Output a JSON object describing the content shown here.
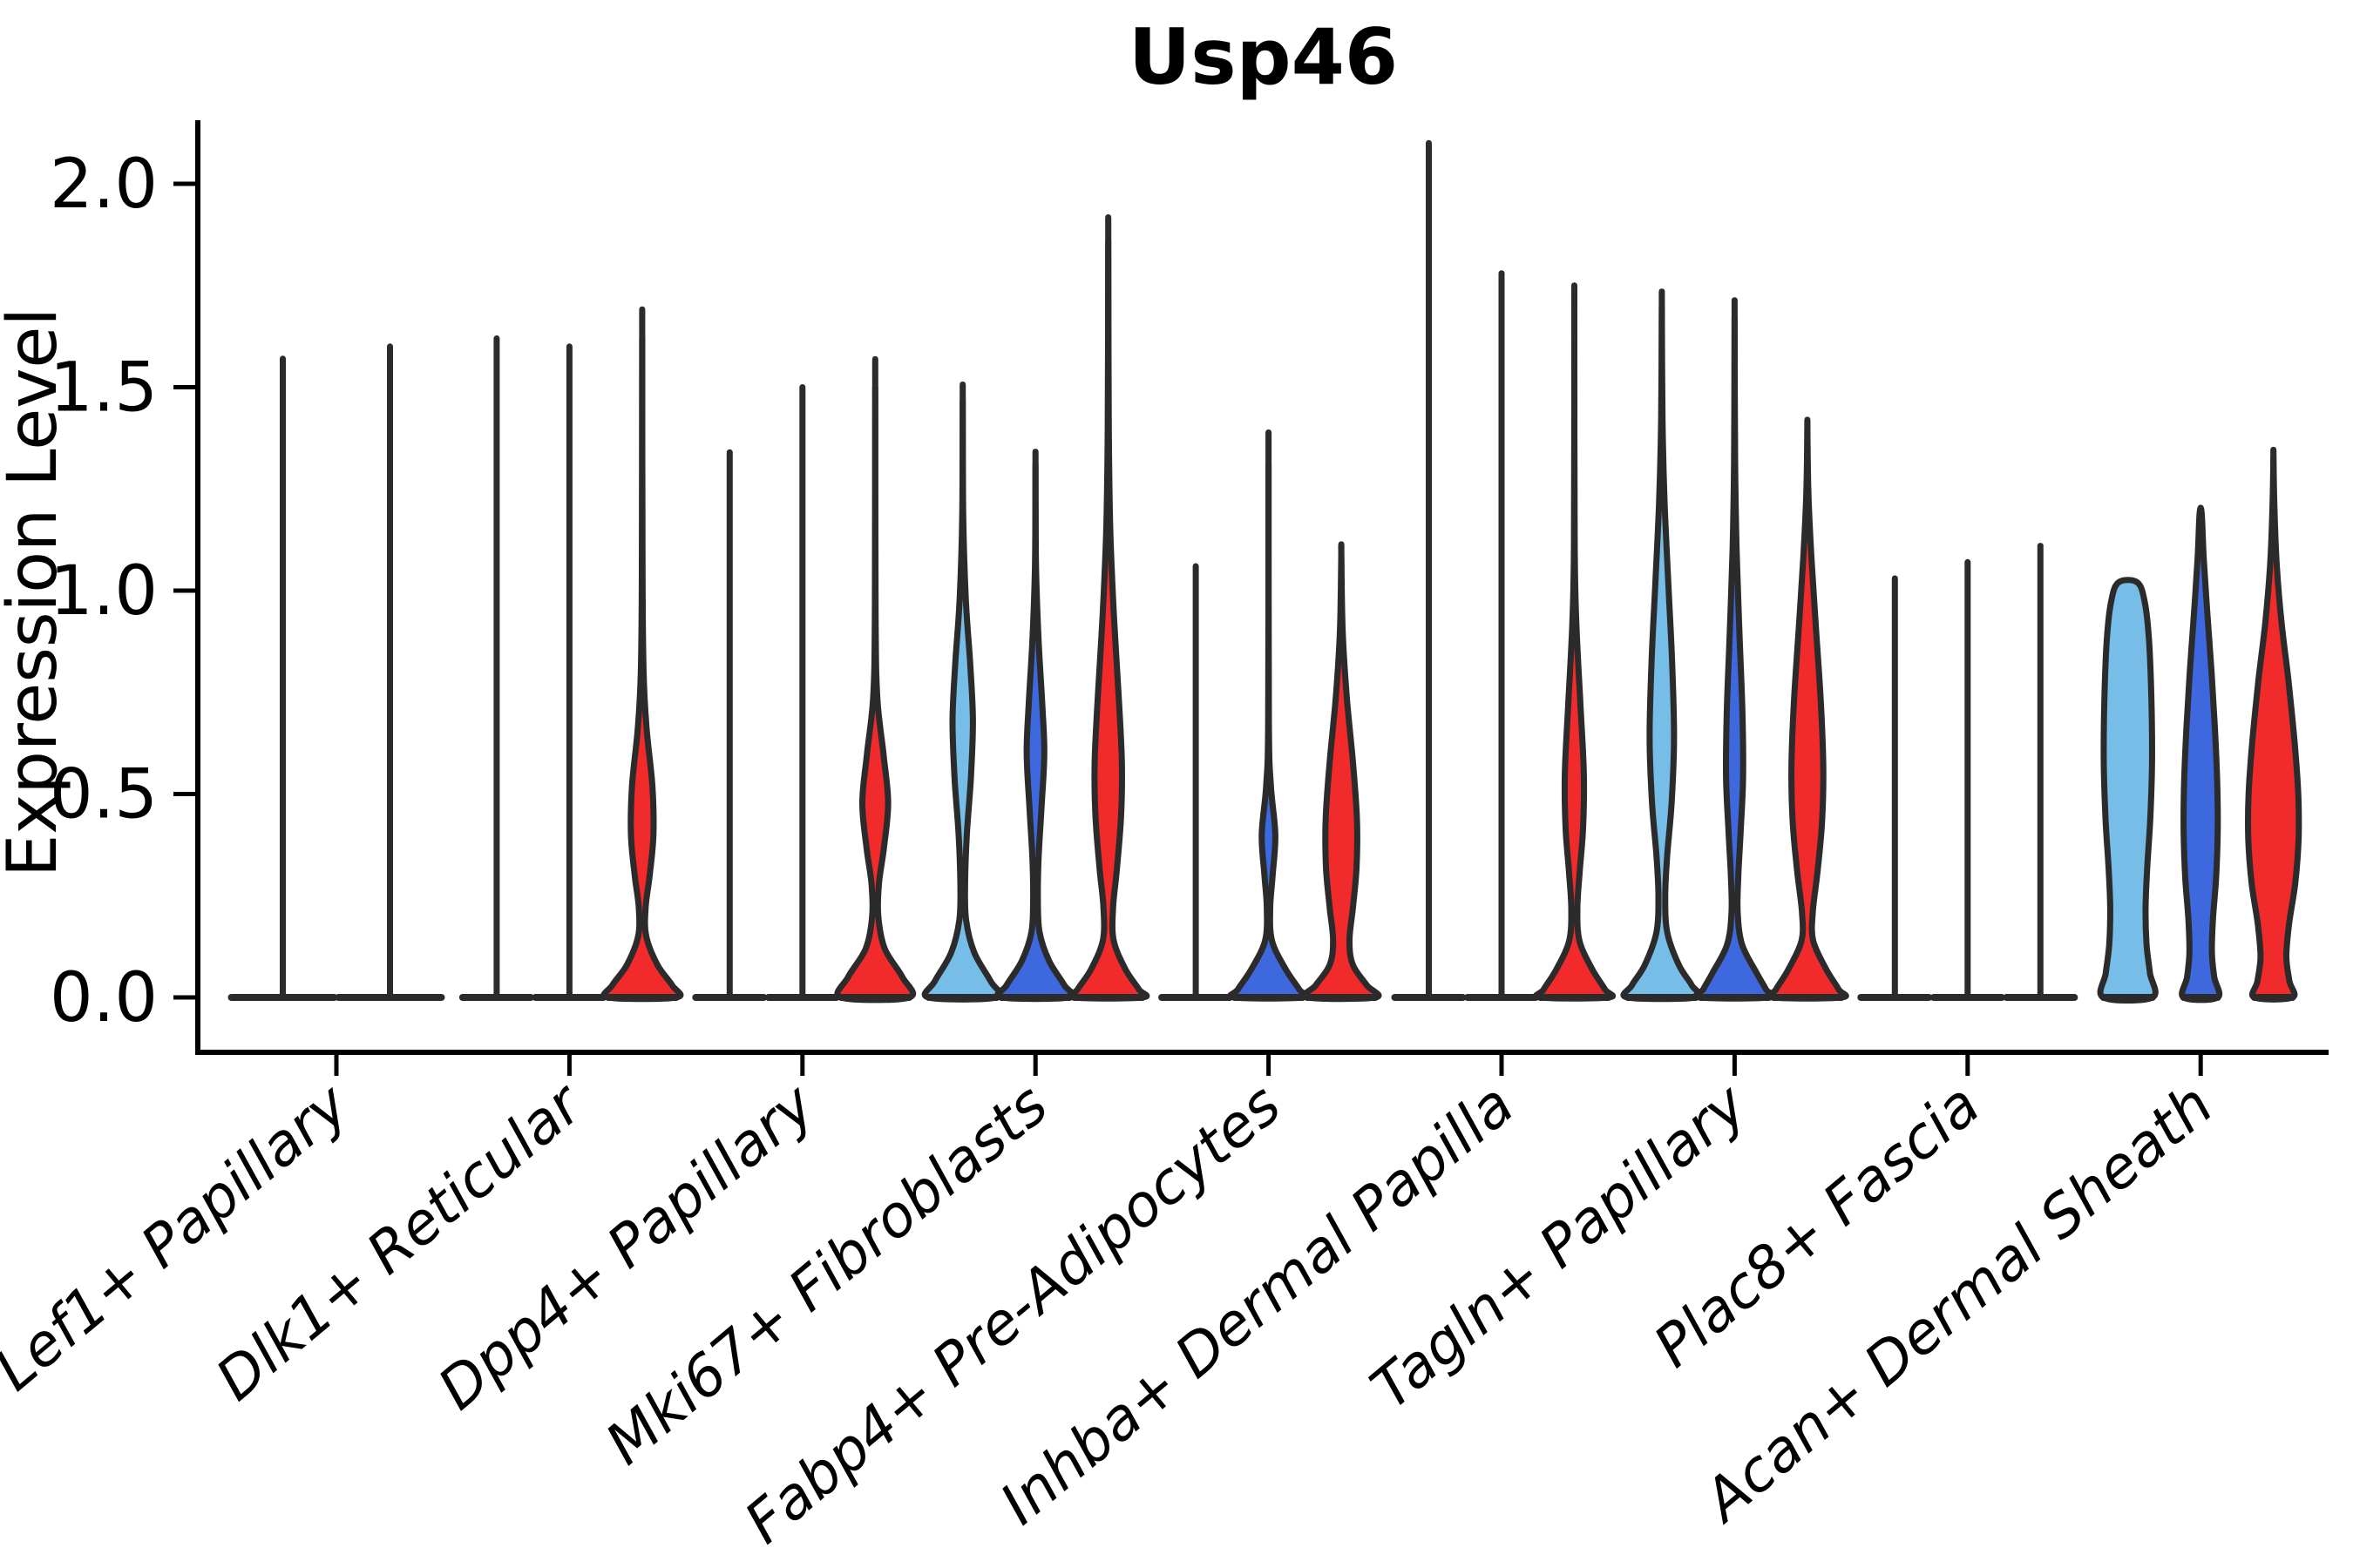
{
  "chart_data": {
    "type": "violin",
    "title": "Usp46",
    "ylabel": "Expression Level",
    "xlabel": "",
    "grid": false,
    "legend": "none",
    "ylim": [
      -0.13,
      2.15
    ],
    "yticks": [
      0.0,
      0.5,
      1.0,
      1.5,
      2.0
    ],
    "ytick_labels": [
      "0.0",
      "0.5",
      "1.0",
      "1.5",
      "2.0"
    ],
    "categories": [
      "Lef1+ Papillary",
      "Dlk1+ Reticular",
      "Dpp4+ Papillary",
      "Mki67+ Fibroblasts",
      "Fabp4+ Pre-Adipocytes",
      "Inhba+ Dermal Papilla",
      "Tagln+ Papillary",
      "Plac8+ Fascia",
      "Acan+ Dermal Sheath"
    ],
    "palette": {
      "skyblue": "#76BDE8",
      "blue": "#3E68DE",
      "red": "#F12A2B",
      "unknown": "#ffffff"
    },
    "outline_color": "#2B2B2B",
    "axis_color": "#000000",
    "groups": [
      {
        "category": "Lef1+ Papillary",
        "violins": [
          {
            "color": "unknown",
            "max": 1.57,
            "flat": true,
            "profile": null
          },
          {
            "color": "unknown",
            "max": 1.6,
            "flat": true,
            "profile": null
          }
        ]
      },
      {
        "category": "Dlk1+ Reticular",
        "violins": [
          {
            "color": "skyblue",
            "max": 1.62,
            "flat": true,
            "profile": null
          },
          {
            "color": "blue",
            "max": 1.6,
            "flat": true,
            "profile": null
          },
          {
            "color": "red",
            "max": 1.62,
            "flat": false,
            "profile": [
              [
                1.62,
                0
              ],
              [
                1.05,
                0.01
              ],
              [
                0.8,
                0.04
              ],
              [
                0.66,
                0.13
              ],
              [
                0.52,
                0.3
              ],
              [
                0.4,
                0.33
              ],
              [
                0.3,
                0.22
              ],
              [
                0.22,
                0.1
              ],
              [
                0.15,
                0.12
              ],
              [
                0.08,
                0.45
              ],
              [
                0.03,
                0.88
              ],
              [
                0,
                1
              ]
            ]
          }
        ]
      },
      {
        "category": "Dpp4+ Papillary",
        "violins": [
          {
            "color": "skyblue",
            "max": 1.34,
            "flat": true,
            "profile": null
          },
          {
            "color": "blue",
            "max": 1.5,
            "flat": true,
            "profile": null
          },
          {
            "color": "red",
            "max": 1.5,
            "flat": false,
            "profile": [
              [
                1.5,
                0
              ],
              [
                0.95,
                0.01
              ],
              [
                0.74,
                0.06
              ],
              [
                0.6,
                0.24
              ],
              [
                0.48,
                0.38
              ],
              [
                0.37,
                0.26
              ],
              [
                0.28,
                0.11
              ],
              [
                0.2,
                0.09
              ],
              [
                0.12,
                0.28
              ],
              [
                0.05,
                0.8
              ],
              [
                0,
                1
              ]
            ]
          }
        ]
      },
      {
        "category": "Mki67+ Fibroblasts",
        "violins": [
          {
            "color": "skyblue",
            "max": 1.47,
            "flat": false,
            "profile": [
              [
                1.47,
                0
              ],
              [
                1.18,
                0.015
              ],
              [
                0.98,
                0.09
              ],
              [
                0.82,
                0.22
              ],
              [
                0.68,
                0.3
              ],
              [
                0.54,
                0.24
              ],
              [
                0.4,
                0.12
              ],
              [
                0.28,
                0.07
              ],
              [
                0.19,
                0.1
              ],
              [
                0.11,
                0.34
              ],
              [
                0.04,
                0.82
              ],
              [
                0,
                1
              ]
            ]
          },
          {
            "color": "blue",
            "max": 1.31,
            "flat": false,
            "profile": [
              [
                1.31,
                0
              ],
              [
                1.06,
                0.015
              ],
              [
                0.88,
                0.09
              ],
              [
                0.72,
                0.2
              ],
              [
                0.6,
                0.26
              ],
              [
                0.47,
                0.18
              ],
              [
                0.34,
                0.09
              ],
              [
                0.24,
                0.07
              ],
              [
                0.16,
                0.12
              ],
              [
                0.09,
                0.4
              ],
              [
                0.03,
                0.85
              ],
              [
                0,
                1
              ]
            ]
          },
          {
            "color": "red",
            "max": 1.86,
            "flat": false,
            "profile": [
              [
                1.86,
                0
              ],
              [
                1.4,
                0.015
              ],
              [
                1.15,
                0.06
              ],
              [
                0.95,
                0.16
              ],
              [
                0.75,
                0.3
              ],
              [
                0.58,
                0.4
              ],
              [
                0.45,
                0.38
              ],
              [
                0.32,
                0.26
              ],
              [
                0.22,
                0.14
              ],
              [
                0.14,
                0.16
              ],
              [
                0.07,
                0.5
              ],
              [
                0.02,
                0.9
              ],
              [
                0,
                1
              ]
            ]
          }
        ]
      },
      {
        "category": "Fabp4+ Pre-Adipocytes",
        "violins": [
          {
            "color": "skyblue",
            "max": 1.06,
            "flat": true,
            "profile": null
          },
          {
            "color": "blue",
            "max": 1.31,
            "flat": false,
            "profile": [
              [
                1.31,
                0
              ],
              [
                0.68,
                0.01
              ],
              [
                0.52,
                0.07
              ],
              [
                0.4,
                0.2
              ],
              [
                0.3,
                0.12
              ],
              [
                0.22,
                0.05
              ],
              [
                0.14,
                0.1
              ],
              [
                0.07,
                0.5
              ],
              [
                0.02,
                0.9
              ],
              [
                0,
                1
              ]
            ]
          },
          {
            "color": "red",
            "max": 1.09,
            "flat": false,
            "profile": [
              [
                1.09,
                0
              ],
              [
                0.9,
                0.04
              ],
              [
                0.74,
                0.16
              ],
              [
                0.58,
                0.34
              ],
              [
                0.44,
                0.46
              ],
              [
                0.32,
                0.45
              ],
              [
                0.22,
                0.34
              ],
              [
                0.14,
                0.24
              ],
              [
                0.08,
                0.34
              ],
              [
                0.03,
                0.75
              ],
              [
                0,
                1
              ]
            ]
          }
        ]
      },
      {
        "category": "Inhba+ Dermal Papilla",
        "violins": [
          {
            "color": "skyblue",
            "max": 2.1,
            "flat": true,
            "profile": null
          },
          {
            "color": "blue",
            "max": 1.78,
            "flat": true,
            "profile": null
          },
          {
            "color": "red",
            "max": 1.68,
            "flat": false,
            "profile": [
              [
                1.68,
                0
              ],
              [
                1.12,
                0.01
              ],
              [
                0.92,
                0.06
              ],
              [
                0.72,
                0.18
              ],
              [
                0.55,
                0.28
              ],
              [
                0.42,
                0.26
              ],
              [
                0.31,
                0.16
              ],
              [
                0.22,
                0.09
              ],
              [
                0.14,
                0.15
              ],
              [
                0.07,
                0.52
              ],
              [
                0.02,
                0.9
              ],
              [
                0,
                1
              ]
            ]
          }
        ]
      },
      {
        "category": "Tagln+ Papillary",
        "violins": [
          {
            "color": "skyblue",
            "max": 1.7,
            "flat": false,
            "profile": [
              [
                1.7,
                0
              ],
              [
                1.42,
                0.02
              ],
              [
                1.22,
                0.08
              ],
              [
                1.02,
                0.19
              ],
              [
                0.83,
                0.3
              ],
              [
                0.64,
                0.36
              ],
              [
                0.48,
                0.29
              ],
              [
                0.35,
                0.16
              ],
              [
                0.25,
                0.1
              ],
              [
                0.16,
                0.16
              ],
              [
                0.08,
                0.5
              ],
              [
                0.03,
                0.88
              ],
              [
                0,
                1
              ]
            ]
          },
          {
            "color": "blue",
            "max": 1.67,
            "flat": false,
            "profile": [
              [
                1.67,
                0
              ],
              [
                1.32,
                0.015
              ],
              [
                1.1,
                0.06
              ],
              [
                0.9,
                0.14
              ],
              [
                0.7,
                0.23
              ],
              [
                0.54,
                0.25
              ],
              [
                0.41,
                0.18
              ],
              [
                0.3,
                0.11
              ],
              [
                0.21,
                0.09
              ],
              [
                0.13,
                0.22
              ],
              [
                0.06,
                0.65
              ],
              [
                0.02,
                0.92
              ],
              [
                0,
                1
              ]
            ]
          },
          {
            "color": "red",
            "max": 1.4,
            "flat": false,
            "profile": [
              [
                1.4,
                0
              ],
              [
                1.24,
                0.03
              ],
              [
                1.08,
                0.12
              ],
              [
                0.9,
                0.26
              ],
              [
                0.72,
                0.4
              ],
              [
                0.56,
                0.47
              ],
              [
                0.43,
                0.43
              ],
              [
                0.31,
                0.3
              ],
              [
                0.21,
                0.16
              ],
              [
                0.14,
                0.17
              ],
              [
                0.07,
                0.55
              ],
              [
                0.02,
                0.92
              ],
              [
                0,
                1
              ]
            ]
          }
        ]
      },
      {
        "category": "Plac8+ Fascia",
        "violins": [
          {
            "color": "skyblue",
            "max": 1.03,
            "flat": true,
            "profile": null
          },
          {
            "color": "blue",
            "max": 1.07,
            "flat": true,
            "profile": null
          },
          {
            "color": "red",
            "max": 1.11,
            "flat": true,
            "profile": null
          }
        ]
      },
      {
        "category": "Acan+ Dermal Sheath",
        "violins": [
          {
            "color": "skyblue",
            "max": 1.02,
            "flat": false,
            "profile": [
              [
                1.02,
                0.28
              ],
              [
                0.97,
                0.5
              ],
              [
                0.88,
                0.62
              ],
              [
                0.74,
                0.69
              ],
              [
                0.58,
                0.71
              ],
              [
                0.44,
                0.66
              ],
              [
                0.32,
                0.57
              ],
              [
                0.22,
                0.52
              ],
              [
                0.13,
                0.55
              ],
              [
                0.06,
                0.65
              ],
              [
                0,
                0.72
              ]
            ]
          },
          {
            "color": "blue",
            "max": 1.19,
            "flat": false,
            "profile": [
              [
                1.19,
                0.03
              ],
              [
                1.08,
                0.09
              ],
              [
                0.94,
                0.2
              ],
              [
                0.8,
                0.32
              ],
              [
                0.66,
                0.42
              ],
              [
                0.52,
                0.49
              ],
              [
                0.4,
                0.5
              ],
              [
                0.29,
                0.45
              ],
              [
                0.19,
                0.36
              ],
              [
                0.11,
                0.33
              ],
              [
                0.05,
                0.4
              ],
              [
                0,
                0.5
              ]
            ]
          },
          {
            "color": "red",
            "max": 1.33,
            "flat": false,
            "profile": [
              [
                1.33,
                0
              ],
              [
                1.2,
                0.03
              ],
              [
                1.06,
                0.1
              ],
              [
                0.92,
                0.24
              ],
              [
                0.78,
                0.44
              ],
              [
                0.63,
                0.62
              ],
              [
                0.5,
                0.73
              ],
              [
                0.39,
                0.74
              ],
              [
                0.28,
                0.64
              ],
              [
                0.18,
                0.46
              ],
              [
                0.1,
                0.38
              ],
              [
                0.04,
                0.47
              ],
              [
                0,
                0.56
              ]
            ]
          }
        ]
      }
    ]
  }
}
